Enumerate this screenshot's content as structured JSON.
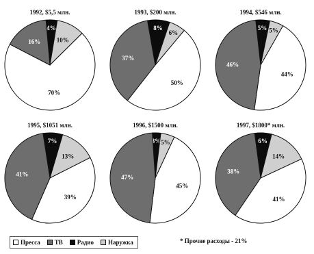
{
  "chart_data": {
    "type": "pie",
    "legend_position": "bottom-left",
    "legend": [
      {
        "label": "Пресса",
        "color": "#ffffff"
      },
      {
        "label": "ТВ",
        "color": "#6e6e6e"
      },
      {
        "label": "Радио",
        "color": "#0c0c0c"
      },
      {
        "label": "Наружка",
        "color": "#cfcfcf"
      }
    ],
    "footnote": "* Прочие расходы - 21%",
    "charts": [
      {
        "title": "1992, $5,5 млн.",
        "slices": [
          {
            "label": "Пресса",
            "value": 70,
            "text": "70%"
          },
          {
            "label": "ТВ",
            "value": 16,
            "text": "16%"
          },
          {
            "label": "Радио",
            "value": 4,
            "text": "4%"
          },
          {
            "label": "Наружка",
            "value": 10,
            "text": "10%"
          }
        ]
      },
      {
        "title": "1993, $200 млн.",
        "slices": [
          {
            "label": "Пресса",
            "value": 50,
            "text": "50%"
          },
          {
            "label": "ТВ",
            "value": 37,
            "text": "37%"
          },
          {
            "label": "Радио",
            "value": 8,
            "text": "8%"
          },
          {
            "label": "Наружка",
            "value": 6,
            "text": "6%"
          }
        ]
      },
      {
        "title": "1994, $546 млн.",
        "slices": [
          {
            "label": "Пресса",
            "value": 44,
            "text": "44%"
          },
          {
            "label": "ТВ",
            "value": 46,
            "text": "46%"
          },
          {
            "label": "Радио",
            "value": 5,
            "text": "5%"
          },
          {
            "label": "Наружка",
            "value": 5,
            "text": "5%"
          }
        ]
      },
      {
        "title": "1995, $1051 млн.",
        "slices": [
          {
            "label": "Пресса",
            "value": 39,
            "text": "39%"
          },
          {
            "label": "ТВ",
            "value": 41,
            "text": "41%"
          },
          {
            "label": "Радио",
            "value": 7,
            "text": "7%"
          },
          {
            "label": "Наружка",
            "value": 13,
            "text": "13%"
          }
        ]
      },
      {
        "title": "1996, $1500 млн.",
        "slices": [
          {
            "label": "Пресса",
            "value": 45,
            "text": "45%"
          },
          {
            "label": "ТВ",
            "value": 47,
            "text": "47%"
          },
          {
            "label": "Радио",
            "value": 3,
            "text": "3%"
          },
          {
            "label": "Наружка",
            "value": 5,
            "text": "5%"
          }
        ]
      },
      {
        "title": "1997, $1800* млн.",
        "slices": [
          {
            "label": "Пресса",
            "value": 41,
            "text": "41%"
          },
          {
            "label": "ТВ",
            "value": 38,
            "text": "38%"
          },
          {
            "label": "Радио",
            "value": 6,
            "text": "6%"
          },
          {
            "label": "Наружка",
            "value": 14,
            "text": "14%"
          }
        ]
      }
    ]
  }
}
